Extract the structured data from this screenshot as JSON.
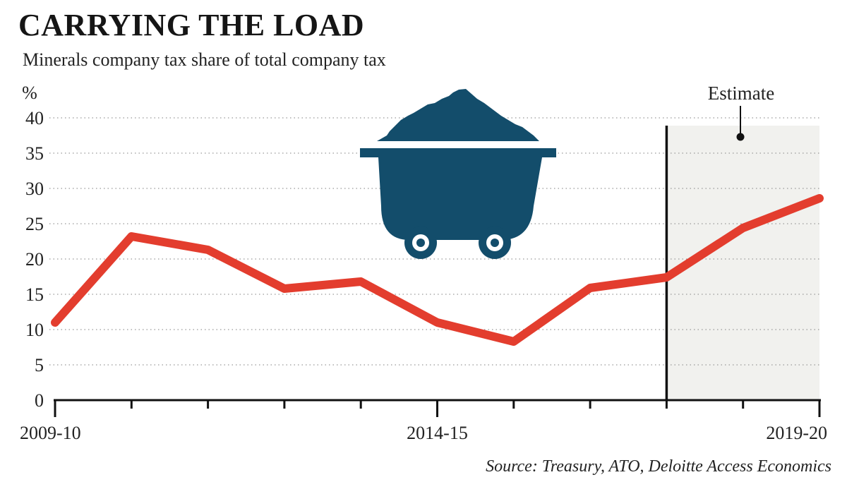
{
  "chart_data": {
    "type": "line",
    "title": "CARRYING THE LOAD",
    "subtitle": "Minerals company tax share of total company tax",
    "ylabel": "%",
    "xlabel": "",
    "ylim": [
      0,
      40
    ],
    "yticks": [
      0,
      5,
      10,
      15,
      20,
      25,
      30,
      35,
      40
    ],
    "x": [
      "2009-10",
      "2010-11",
      "2011-12",
      "2012-13",
      "2013-14",
      "2014-15",
      "2015-16",
      "2016-17",
      "2017-18",
      "2018-19",
      "2019-20"
    ],
    "xtick_labels": [
      {
        "index": 0,
        "label": "2009-10"
      },
      {
        "index": 5,
        "label": "2014-15"
      },
      {
        "index": 10,
        "label": "2019-20"
      }
    ],
    "series": [
      {
        "values": [
          11,
          23.2,
          21.3,
          15.8,
          16.8,
          11,
          8.3,
          15.9,
          17.4,
          24.4,
          28.6
        ],
        "color": "#e33d2e"
      }
    ],
    "estimate": {
      "label": "Estimate",
      "start_index": 8,
      "end_index": 10
    },
    "grid": true,
    "grid_style": "dotted-horizontal",
    "source": "Source: Treasury, ATO, Deloitte Access Economics",
    "colors": {
      "line": "#e33d2e",
      "estimate_shade": "#f1f1ee",
      "illustration": "#134d6b",
      "axis": "#111111",
      "grid": "#999999"
    },
    "illustration": "mining-cart-icon"
  }
}
